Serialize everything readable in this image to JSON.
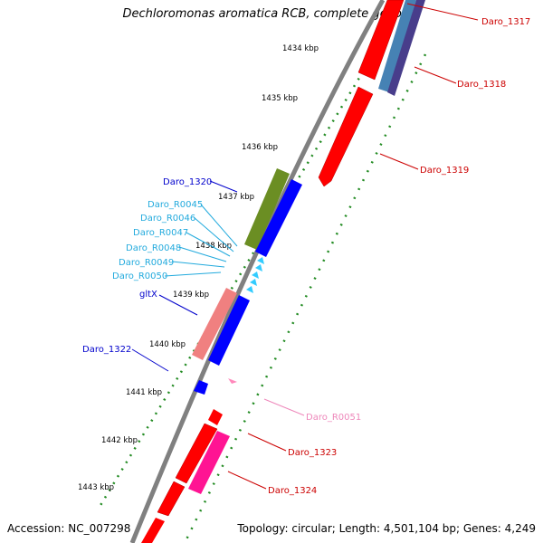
{
  "title": "Dechloromonas aromatica RCB, complete genome",
  "accession": "Accession: NC_007298",
  "topology": "Topology: circular; Length: 4,501,104 bp; Genes: 4,249",
  "colors": {
    "backbone": "#808080",
    "tick": "#228b22",
    "cds": "#ff0000",
    "cds_dark": "#b00000",
    "rna": "#33ccff",
    "pink": "#ff1493",
    "blue": "#0000ff",
    "olive": "#6b8e23",
    "salmon": "#f08080",
    "steel": "#4682b4",
    "slate": "#483d8b",
    "label_red": "#cc0000",
    "label_blue": "#0000cc",
    "label_cyan": "#22aadd",
    "label_pink": "#ee88bb"
  },
  "scale_ticks": [
    {
      "label": "1434 kbp"
    },
    {
      "label": "1435 kbp"
    },
    {
      "label": "1436 kbp"
    },
    {
      "label": "1437 kbp"
    },
    {
      "label": "1438 kbp"
    },
    {
      "label": "1439 kbp"
    },
    {
      "label": "1440 kbp"
    },
    {
      "label": "1441 kbp"
    },
    {
      "label": "1442 kbp"
    },
    {
      "label": "1443 kbp"
    }
  ],
  "feature_labels": [
    {
      "text": "Daro_1317",
      "color": "label_red"
    },
    {
      "text": "Daro_1318",
      "color": "label_red"
    },
    {
      "text": "Daro_1319",
      "color": "label_red"
    },
    {
      "text": "Daro_1320",
      "color": "label_blue"
    },
    {
      "text": "Daro_R0045",
      "color": "label_cyan"
    },
    {
      "text": "Daro_R0046",
      "color": "label_cyan"
    },
    {
      "text": "Daro_R0047",
      "color": "label_cyan"
    },
    {
      "text": "Daro_R0048",
      "color": "label_cyan"
    },
    {
      "text": "Daro_R0049",
      "color": "label_cyan"
    },
    {
      "text": "Daro_R0050",
      "color": "label_cyan"
    },
    {
      "text": "gltX",
      "color": "label_blue"
    },
    {
      "text": "Daro_1322",
      "color": "label_blue"
    },
    {
      "text": "Daro_R0051",
      "color": "label_pink"
    },
    {
      "text": "Daro_1323",
      "color": "label_red"
    },
    {
      "text": "Daro_1324",
      "color": "label_red"
    }
  ]
}
